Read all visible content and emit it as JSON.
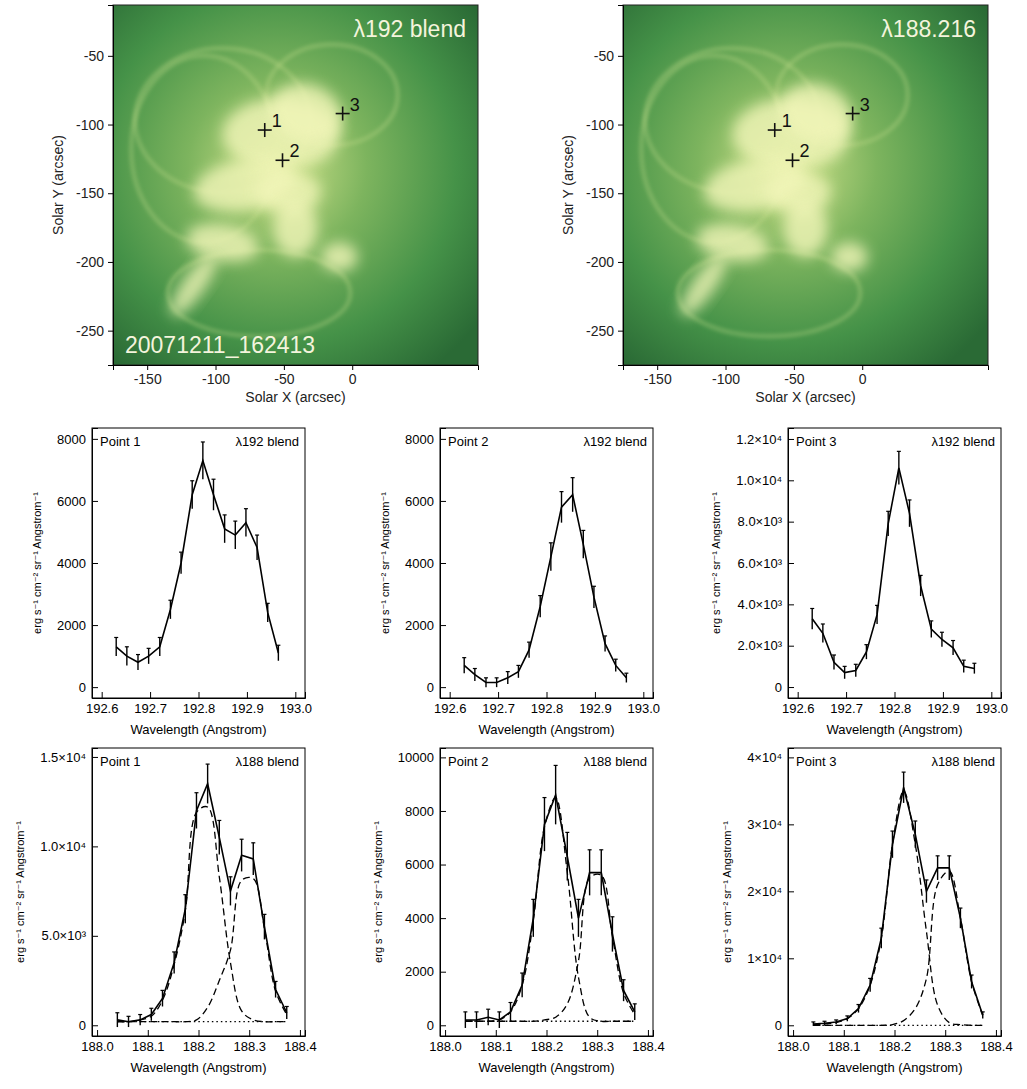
{
  "chart_data": [
    {
      "type": "image",
      "title": "λ192 blend",
      "annotation": "20071211_162413",
      "xlabel": "Solar X (arcsec)",
      "ylabel": "Solar Y (arcsec)",
      "xlim": [
        -175,
        92
      ],
      "ylim": [
        -275,
        -13
      ],
      "xticks": [
        -150,
        -100,
        -50,
        0
      ],
      "yticks": [
        -250,
        -200,
        -150,
        -100,
        -50
      ],
      "points": [
        {
          "label": "1",
          "x": -64,
          "y": -104
        },
        {
          "label": "2",
          "x": -51,
          "y": -126
        },
        {
          "label": "3",
          "x": -7,
          "y": -92
        }
      ]
    },
    {
      "type": "image",
      "title": "λ188.216",
      "xlabel": "Solar X (arcsec)",
      "ylabel": "Solar Y (arcsec)",
      "xlim": [
        -175,
        92
      ],
      "ylim": [
        -275,
        -13
      ],
      "xticks": [
        -150,
        -100,
        -50,
        0
      ],
      "yticks": [
        -250,
        -200,
        -150,
        -100,
        -50
      ],
      "points": [
        {
          "label": "1",
          "x": -64,
          "y": -104
        },
        {
          "label": "2",
          "x": -51,
          "y": -126
        },
        {
          "label": "3",
          "x": -7,
          "y": -92
        }
      ]
    },
    {
      "type": "line",
      "title": "Point 1",
      "subtitle": "λ192 blend",
      "xlabel": "Wavelength (Angstrom)",
      "ylabel": "erg s⁻¹ cm⁻² sr⁻¹ Angstrom⁻¹",
      "xlim": [
        192.58,
        193.02
      ],
      "ylim": [
        -350,
        8350
      ],
      "xticks": [
        192.6,
        192.7,
        192.8,
        192.9,
        {
          "value": 193,
          "label": "193.0"
        }
      ],
      "yticks": [
        0,
        2000,
        4000,
        6000,
        8000
      ],
      "x": [
        192.63,
        192.652,
        192.675,
        192.697,
        192.72,
        192.742,
        192.764,
        192.787,
        192.809,
        192.831,
        192.854,
        192.876,
        192.898,
        192.921,
        192.943,
        192.965
      ],
      "series": [
        {
          "line_style": "solid",
          "color": "#000000",
          "values": [
            1300,
            1000,
            800,
            1000,
            1300,
            2500,
            4000,
            6200,
            7300,
            6200,
            5100,
            4900,
            5300,
            4500,
            2400,
            1100
          ],
          "errors": [
            300,
            300,
            250,
            250,
            300,
            300,
            350,
            450,
            600,
            500,
            450,
            450,
            450,
            400,
            300,
            250
          ]
        }
      ]
    },
    {
      "type": "line",
      "title": "Point 2",
      "subtitle": "λ192 blend",
      "xlabel": "Wavelength (Angstrom)",
      "ylabel": "erg s⁻¹ cm⁻² sr⁻¹ Angstrom⁻¹",
      "xlim": [
        192.58,
        193.02
      ],
      "ylim": [
        -350,
        8350
      ],
      "xticks": [
        192.6,
        192.7,
        192.8,
        192.9,
        {
          "value": 193,
          "label": "193.0"
        }
      ],
      "yticks": [
        0,
        2000,
        4000,
        6000,
        8000
      ],
      "x": [
        192.63,
        192.652,
        192.675,
        192.697,
        192.72,
        192.742,
        192.764,
        192.787,
        192.809,
        192.831,
        192.854,
        192.876,
        192.898,
        192.921,
        192.943,
        192.965
      ],
      "series": [
        {
          "line_style": "solid",
          "color": "#000000",
          "values": [
            700,
            400,
            150,
            150,
            300,
            500,
            1200,
            2600,
            4200,
            5800,
            6200,
            4600,
            2900,
            1400,
            700,
            300
          ],
          "errors": [
            250,
            200,
            150,
            150,
            200,
            200,
            250,
            350,
            450,
            500,
            550,
            450,
            350,
            250,
            200,
            150
          ]
        }
      ]
    },
    {
      "type": "line",
      "title": "Point 3",
      "subtitle": "λ192 blend",
      "xlabel": "Wavelength (Angstrom)",
      "ylabel": "erg s⁻¹ cm⁻² sr⁻¹ Angstrom⁻¹",
      "xlim": [
        192.58,
        193.02
      ],
      "ylim": [
        -530,
        12530
      ],
      "xticks": [
        192.6,
        192.7,
        192.8,
        192.9,
        {
          "value": 193,
          "label": "193.0"
        }
      ],
      "yticks": [
        0,
        {
          "value": 2000,
          "label": "2.0×10³"
        },
        {
          "value": 4000,
          "label": "4.0×10³"
        },
        {
          "value": 6000,
          "label": "6.0×10³"
        },
        {
          "value": 8000,
          "label": "8.0×10³"
        },
        {
          "value": 10000,
          "label": "1.0×10⁴"
        },
        {
          "value": 12000,
          "label": "1.2×10⁴"
        }
      ],
      "x": [
        192.63,
        192.652,
        192.675,
        192.697,
        192.72,
        192.742,
        192.764,
        192.787,
        192.809,
        192.831,
        192.854,
        192.876,
        192.898,
        192.921,
        192.943,
        192.965
      ],
      "series": [
        {
          "line_style": "solid",
          "color": "#000000",
          "values": [
            3300,
            2600,
            1200,
            700,
            800,
            1700,
            3500,
            7900,
            10600,
            8400,
            4900,
            2800,
            2300,
            1900,
            1000,
            900
          ],
          "errors": [
            500,
            450,
            350,
            300,
            300,
            350,
            450,
            600,
            800,
            650,
            500,
            400,
            350,
            350,
            300,
            250
          ]
        }
      ]
    },
    {
      "type": "line",
      "title": "Point 1",
      "subtitle": "λ188 blend",
      "xlabel": "Wavelength (Angstrom)",
      "ylabel": "erg s⁻¹ cm⁻² sr⁻¹ Angstrom⁻¹",
      "xlim": [
        187.99,
        188.41
      ],
      "ylim": [
        -600,
        15500
      ],
      "xticks": [
        {
          "value": 188,
          "label": "188.0"
        },
        188.1,
        188.2,
        188.3,
        188.4
      ],
      "yticks": [
        0,
        {
          "value": 5000,
          "label": "5.0×10³"
        },
        {
          "value": 10000,
          "label": "1.0×10⁴"
        },
        {
          "value": 15000,
          "label": "1.5×10⁴"
        }
      ],
      "x": [
        188.04,
        188.062,
        188.085,
        188.107,
        188.129,
        188.152,
        188.174,
        188.196,
        188.218,
        188.241,
        188.263,
        188.285,
        188.308,
        188.33,
        188.352,
        188.374
      ],
      "series": [
        {
          "line_style": "solid",
          "color": "#000000",
          "values": [
            300,
            200,
            300,
            600,
            1500,
            3500,
            6500,
            12000,
            13500,
            10500,
            7500,
            9500,
            9300,
            5500,
            2000,
            700
          ],
          "errors": [
            400,
            300,
            300,
            350,
            450,
            600,
            800,
            1000,
            1100,
            950,
            800,
            900,
            900,
            700,
            450,
            350
          ]
        },
        {
          "line_style": "dashed",
          "color": "#000000",
          "values": [
            200,
            200,
            300,
            500,
            1400,
            3400,
            6400,
            11900,
            12200,
            8300,
            3500,
            800,
            300,
            200,
            200,
            200
          ]
        },
        {
          "line_style": "dashed",
          "color": "#000000",
          "values": [
            200,
            200,
            200,
            200,
            200,
            200,
            200,
            300,
            1000,
            2500,
            4200,
            8100,
            8200,
            5400,
            1900,
            600
          ]
        },
        {
          "line_style": "dotted",
          "color": "#000000",
          "values": [
            200,
            200,
            200,
            200,
            200,
            200,
            200,
            200,
            200,
            200,
            200,
            200,
            200,
            200,
            200,
            200
          ]
        }
      ]
    },
    {
      "type": "line",
      "title": "Point 2",
      "subtitle": "λ188 blend",
      "xlabel": "Wavelength (Angstrom)",
      "ylabel": "erg s⁻¹ cm⁻² sr⁻¹ Angstrom⁻¹",
      "xlim": [
        187.99,
        188.41
      ],
      "ylim": [
        -400,
        10350
      ],
      "xticks": [
        {
          "value": 188,
          "label": "188.0"
        },
        188.1,
        188.2,
        188.3,
        188.4
      ],
      "yticks": [
        0,
        2000,
        4000,
        6000,
        8000,
        10000
      ],
      "x": [
        188.04,
        188.062,
        188.085,
        188.107,
        188.129,
        188.152,
        188.174,
        188.196,
        188.218,
        188.241,
        188.263,
        188.285,
        188.308,
        188.33,
        188.352,
        188.374
      ],
      "series": [
        {
          "line_style": "solid",
          "color": "#000000",
          "values": [
            200,
            200,
            300,
            200,
            500,
            1500,
            4000,
            7500,
            8600,
            6300,
            4000,
            5700,
            5700,
            3400,
            1300,
            500
          ],
          "errors": [
            300,
            300,
            300,
            300,
            350,
            450,
            700,
            1000,
            1100,
            900,
            700,
            850,
            850,
            650,
            400,
            300
          ]
        },
        {
          "line_style": "dashed",
          "color": "#000000",
          "values": [
            150,
            150,
            150,
            200,
            500,
            1500,
            3900,
            7400,
            8500,
            5700,
            1800,
            300,
            150,
            150,
            150,
            150
          ]
        },
        {
          "line_style": "dashed",
          "color": "#000000",
          "values": [
            150,
            150,
            150,
            150,
            150,
            150,
            150,
            200,
            300,
            800,
            2400,
            5500,
            5600,
            3300,
            1200,
            400
          ]
        },
        {
          "line_style": "dotted",
          "color": "#000000",
          "values": [
            150,
            150,
            150,
            150,
            150,
            150,
            150,
            150,
            150,
            150,
            150,
            150,
            150,
            150,
            150,
            150
          ]
        }
      ]
    },
    {
      "type": "line",
      "title": "Point 3",
      "subtitle": "λ188 blend",
      "xlabel": "Wavelength (Angstrom)",
      "ylabel": "erg s⁻¹ cm⁻² sr⁻¹ Angstrom⁻¹",
      "xlim": [
        187.99,
        188.41
      ],
      "ylim": [
        -1600,
        41400
      ],
      "xticks": [
        {
          "value": 188,
          "label": "188.0"
        },
        188.1,
        188.2,
        188.3,
        188.4
      ],
      "yticks": [
        0,
        {
          "value": 10000,
          "label": "1×10⁴"
        },
        {
          "value": 20000,
          "label": "2×10⁴"
        },
        {
          "value": 30000,
          "label": "3×10⁴"
        },
        {
          "value": 40000,
          "label": "4×10⁴"
        }
      ],
      "x": [
        188.04,
        188.062,
        188.085,
        188.107,
        188.129,
        188.152,
        188.174,
        188.196,
        188.218,
        188.241,
        188.263,
        188.285,
        188.308,
        188.33,
        188.352,
        188.374
      ],
      "series": [
        {
          "line_style": "solid",
          "color": "#000000",
          "values": [
            200,
            300,
            500,
            1000,
            2500,
            6000,
            13000,
            27000,
            35500,
            28500,
            20000,
            23500,
            23500,
            16000,
            6500,
            1500
          ],
          "errors": [
            300,
            300,
            300,
            400,
            600,
            1000,
            1500,
            2000,
            2300,
            2000,
            1700,
            1800,
            1800,
            1500,
            1000,
            500
          ]
        },
        {
          "line_style": "dashed",
          "color": "#000000",
          "values": [
            100,
            200,
            400,
            1000,
            2500,
            6000,
            13000,
            27000,
            35000,
            27000,
            14000,
            3000,
            400,
            100,
            0,
            0
          ]
        },
        {
          "line_style": "dashed",
          "color": "#000000",
          "values": [
            0,
            0,
            0,
            0,
            0,
            0,
            0,
            100,
            700,
            2500,
            7000,
            21000,
            23000,
            16000,
            6500,
            1500
          ]
        },
        {
          "line_style": "dotted",
          "color": "#000000",
          "values": [
            0,
            0,
            0,
            0,
            0,
            0,
            0,
            0,
            0,
            0,
            0,
            0,
            0,
            0,
            0,
            0
          ]
        }
      ]
    }
  ]
}
